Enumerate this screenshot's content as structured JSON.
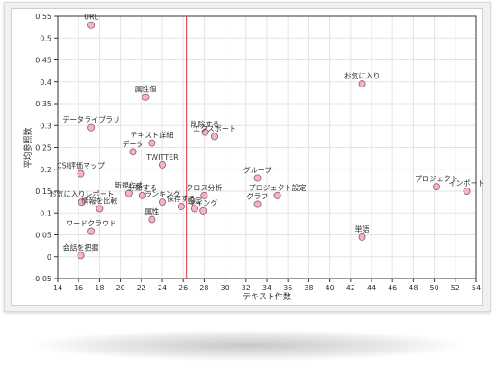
{
  "chart_data": {
    "type": "scatter",
    "xlabel": "テキスト件数",
    "ylabel": "平均参照数",
    "xlim": [
      14,
      54
    ],
    "ylim": [
      -0.05,
      0.55
    ],
    "xticks": [
      "14",
      "16",
      "18",
      "20",
      "22",
      "24",
      "26",
      "28",
      "30",
      "32",
      "34",
      "36",
      "38",
      "40",
      "42",
      "44",
      "46",
      "48",
      "50",
      "52",
      "54"
    ],
    "yticks": [
      "-0.05",
      "0",
      "0.05",
      "0.1",
      "0.15",
      "0.2",
      "0.25",
      "0.3",
      "0.35",
      "0.4",
      "0.45",
      "0.5",
      "0.55"
    ],
    "reference_lines": {
      "x": 26.3,
      "y": 0.18
    },
    "grid": true,
    "marker_color": "#f4b4c4",
    "marker_edge_color": "#8a5a6a",
    "reference_line_color": "#d9363e",
    "points": [
      {
        "label": "URL",
        "x": 17.2,
        "y": 0.53
      },
      {
        "label": "データライブラリ",
        "x": 17.2,
        "y": 0.295
      },
      {
        "label": "CSI評価マップ",
        "x": 16.2,
        "y": 0.19
      },
      {
        "label": "お気に入りレポート",
        "x": 16.3,
        "y": 0.125
      },
      {
        "label": "情報を比較",
        "x": 18,
        "y": 0.11
      },
      {
        "label": "ワードクラウド",
        "x": 17.2,
        "y": 0.058
      },
      {
        "label": "会話を把握",
        "x": 16.2,
        "y": 0.003
      },
      {
        "label": "属性値",
        "x": 22.4,
        "y": 0.365
      },
      {
        "label": "テキスト詳細",
        "x": 23,
        "y": 0.26
      },
      {
        "label": "データ",
        "x": 21.2,
        "y": 0.24
      },
      {
        "label": "TWITTER",
        "x": 24,
        "y": 0.21
      },
      {
        "label": "新規作成",
        "x": 20.8,
        "y": 0.145
      },
      {
        "label": "分類する",
        "x": 22.1,
        "y": 0.14
      },
      {
        "label": "ランキング",
        "x": 24,
        "y": 0.125
      },
      {
        "label": "属性",
        "x": 23,
        "y": 0.085
      },
      {
        "label": "保存する",
        "x": 25.8,
        "y": 0.115
      },
      {
        "label": "設定",
        "x": 27.1,
        "y": 0.11
      },
      {
        "label": "マイング",
        "x": 27.9,
        "y": 0.105
      },
      {
        "label": "クロス分析",
        "x": 28,
        "y": 0.14
      },
      {
        "label": "削除する",
        "x": 28.1,
        "y": 0.285
      },
      {
        "label": "エクスポート",
        "x": 29,
        "y": 0.275
      },
      {
        "label": "グループ",
        "x": 33.1,
        "y": 0.18
      },
      {
        "label": "グラフ",
        "x": 33.1,
        "y": 0.12
      },
      {
        "label": "プロジェクト設定",
        "x": 35,
        "y": 0.14
      },
      {
        "label": "お気に入り",
        "x": 43.1,
        "y": 0.395
      },
      {
        "label": "単語",
        "x": 43.1,
        "y": 0.045
      },
      {
        "label": "プロジェクト",
        "x": 50.2,
        "y": 0.16
      },
      {
        "label": "インポート",
        "x": 53.1,
        "y": 0.15
      }
    ]
  }
}
